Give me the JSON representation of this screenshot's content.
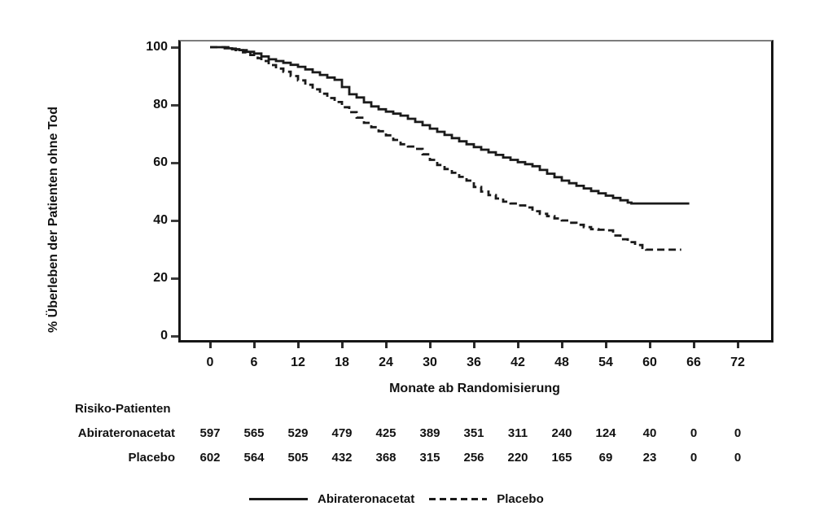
{
  "figure_background": "#ffffff",
  "chart_data": {
    "type": "line",
    "subtype": "kaplan-meier-step",
    "title": "",
    "xlabel": "Monate ab Randomisierung",
    "ylabel": "% Überleben der Patienten ohne Tod",
    "x_ticks": [
      0,
      6,
      12,
      18,
      24,
      30,
      36,
      42,
      48,
      54,
      60,
      66,
      72
    ],
    "y_ticks": [
      0,
      20,
      40,
      60,
      80,
      100
    ],
    "xlim": [
      -4.2,
      76.6
    ],
    "ylim": [
      -1.7,
      102.3
    ],
    "grid": false,
    "legend_position": "bottom-center",
    "line_color": "#1a1a1a",
    "series": [
      {
        "name": "Abirateronacetat",
        "style": "solid",
        "points": [
          [
            0,
            100
          ],
          [
            1,
            100
          ],
          [
            2,
            99.6
          ],
          [
            3,
            99.3
          ],
          [
            4,
            99
          ],
          [
            5,
            98.4
          ],
          [
            6,
            97.8
          ],
          [
            7,
            96.8
          ],
          [
            8,
            95.8
          ],
          [
            9,
            95.2
          ],
          [
            10,
            94.6
          ],
          [
            11,
            93.9
          ],
          [
            12,
            93.2
          ],
          [
            13,
            92.3
          ],
          [
            14,
            91.3
          ],
          [
            15,
            90.4
          ],
          [
            16,
            89.5
          ],
          [
            17,
            88.7
          ],
          [
            18,
            86.2
          ],
          [
            19,
            83.7
          ],
          [
            20,
            82.6
          ],
          [
            21,
            80.9
          ],
          [
            22,
            79.5
          ],
          [
            23,
            78.5
          ],
          [
            24,
            77.7
          ],
          [
            25,
            77
          ],
          [
            26,
            76.3
          ],
          [
            27,
            75.2
          ],
          [
            28,
            74.1
          ],
          [
            29,
            73
          ],
          [
            30,
            71.8
          ],
          [
            31,
            70.7
          ],
          [
            32,
            69.6
          ],
          [
            33,
            68.5
          ],
          [
            34,
            67.4
          ],
          [
            35,
            66.4
          ],
          [
            36,
            65.4
          ],
          [
            37,
            64.5
          ],
          [
            38,
            63.6
          ],
          [
            39,
            62.7
          ],
          [
            40,
            61.8
          ],
          [
            41,
            61
          ],
          [
            42,
            60.2
          ],
          [
            43,
            59.5
          ],
          [
            44,
            58.8
          ],
          [
            45,
            57.5
          ],
          [
            46,
            56.2
          ],
          [
            47,
            55
          ],
          [
            48,
            53.8
          ],
          [
            49,
            52.9
          ],
          [
            50,
            52
          ],
          [
            51,
            51.1
          ],
          [
            52,
            50.2
          ],
          [
            53,
            49.4
          ],
          [
            54,
            48.6
          ],
          [
            55,
            47.8
          ],
          [
            56,
            47
          ],
          [
            57,
            46.2
          ],
          [
            57.5,
            45.9
          ],
          [
            65.4,
            45.9
          ]
        ]
      },
      {
        "name": "Placebo",
        "style": "dashed",
        "points": [
          [
            0,
            100
          ],
          [
            1.5,
            100
          ],
          [
            2.5,
            99.5
          ],
          [
            3.5,
            99
          ],
          [
            4.5,
            98.2
          ],
          [
            5.5,
            97.3
          ],
          [
            6.5,
            96.2
          ],
          [
            7,
            95.2
          ],
          [
            8,
            93.8
          ],
          [
            9,
            92.6
          ],
          [
            10,
            91.5
          ],
          [
            11,
            90
          ],
          [
            12,
            88.5
          ],
          [
            13,
            87
          ],
          [
            14,
            85.4
          ],
          [
            15,
            83.9
          ],
          [
            16,
            82.4
          ],
          [
            17,
            81
          ],
          [
            18,
            79.2
          ],
          [
            19,
            77.5
          ],
          [
            20,
            75.6
          ],
          [
            21,
            73.8
          ],
          [
            22,
            72.3
          ],
          [
            23,
            70.9
          ],
          [
            24,
            69.5
          ],
          [
            25,
            67.9
          ],
          [
            26,
            66.4
          ],
          [
            27,
            65.6
          ],
          [
            28,
            64.8
          ],
          [
            29,
            62.9
          ],
          [
            30,
            61
          ],
          [
            31,
            59.2
          ],
          [
            32,
            57.8
          ],
          [
            33,
            56.5
          ],
          [
            34,
            55.1
          ],
          [
            35,
            53.8
          ],
          [
            36,
            51.6
          ],
          [
            37,
            50
          ],
          [
            38,
            48.8
          ],
          [
            39,
            47.6
          ],
          [
            40,
            46.5
          ],
          [
            41,
            45.9
          ],
          [
            42,
            45.2
          ],
          [
            43,
            44.5
          ],
          [
            44,
            43.2
          ],
          [
            45,
            42.3
          ],
          [
            46,
            41.5
          ],
          [
            47,
            40.7
          ],
          [
            48,
            40
          ],
          [
            49,
            39.2
          ],
          [
            50,
            38.5
          ],
          [
            51,
            37.7
          ],
          [
            52,
            37
          ],
          [
            53,
            36.8
          ],
          [
            54,
            36.6
          ],
          [
            55,
            34.8
          ],
          [
            56,
            33.5
          ],
          [
            57,
            32.5
          ],
          [
            58,
            31.5
          ],
          [
            59,
            30.5
          ],
          [
            59.5,
            29.9
          ],
          [
            64.3,
            29.9
          ]
        ]
      }
    ]
  },
  "risk_table": {
    "header": "Risiko-Patienten",
    "columns_months": [
      0,
      6,
      12,
      18,
      24,
      30,
      36,
      42,
      48,
      54,
      60,
      66,
      72
    ],
    "rows": [
      {
        "label": "Abirateronacetat",
        "values": [
          597,
          565,
          529,
          479,
          425,
          389,
          351,
          311,
          240,
          124,
          40,
          0,
          0
        ]
      },
      {
        "label": "Placebo",
        "values": [
          602,
          564,
          505,
          432,
          368,
          315,
          256,
          220,
          165,
          69,
          23,
          0,
          0
        ]
      }
    ]
  },
  "legend": {
    "items": [
      {
        "label": "Abirateronacetat",
        "style": "solid"
      },
      {
        "label": "Placebo",
        "style": "dashed"
      }
    ]
  }
}
